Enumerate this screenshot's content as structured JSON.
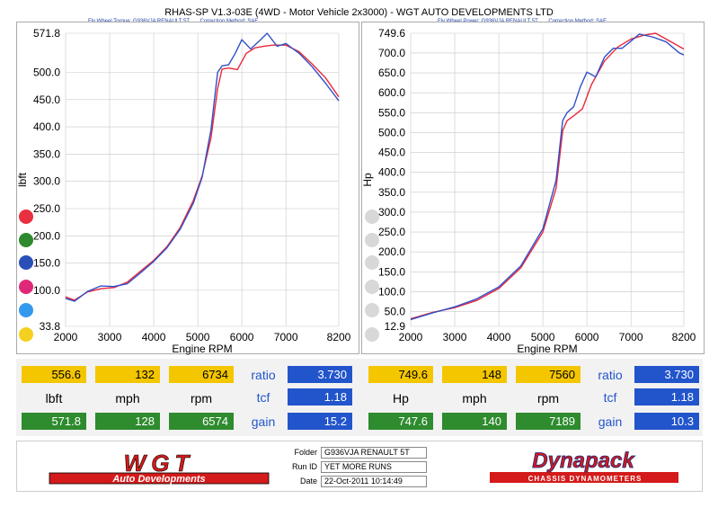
{
  "title": "RHAS-SP V1.3-03E  (4WD - Motor Vehicle 2x3000) - WGT AUTO DEVELOPMENTS LTD",
  "left_header": {
    "label": "Fly Wheel Torque: G936VJA RENAULT 5T",
    "correction": "Correction Method: SAE"
  },
  "right_header": {
    "label": "Fly Wheel Power: G936VJA RENAULT 5T",
    "correction": "Correction Method: SAE"
  },
  "colors": {
    "red_run": "#e8283c",
    "blue_run": "#3050c8",
    "grid": "#c8c8c8"
  },
  "dots": {
    "left": [
      "#e83040",
      "#2e8a2e",
      "#2850b8",
      "#e02878",
      "#3399ee",
      "#f4d020"
    ],
    "right": [
      "#d8d8d8",
      "#d8d8d8",
      "#d8d8d8",
      "#d8d8d8",
      "#d8d8d8",
      "#d8d8d8"
    ]
  },
  "chart_data": [
    {
      "type": "line",
      "xlabel": "Engine RPM",
      "ylabel": "lbft",
      "x_ticks": [
        "2000",
        "3000",
        "4000",
        "5000",
        "6000",
        "7000",
        "8200"
      ],
      "y_ticks": [
        "571.8",
        "500.0",
        "450.0",
        "400.0",
        "350.0",
        "300.0",
        "250.0",
        "200.0",
        "150.0",
        "100.0",
        "33.8"
      ],
      "xlim": [
        2000,
        8200
      ],
      "ylim": [
        33.8,
        571.8
      ],
      "grid": true,
      "series": [
        {
          "color": "red",
          "x": [
            2000,
            2200,
            2500,
            2800,
            3100,
            3400,
            3700,
            4000,
            4300,
            4600,
            4900,
            5100,
            5300,
            5450,
            5550,
            5700,
            5900,
            6100,
            6300,
            6500,
            6700,
            7000,
            7300,
            7600,
            7900,
            8200
          ],
          "y": [
            88,
            82,
            97,
            103,
            105,
            115,
            135,
            155,
            180,
            215,
            265,
            310,
            380,
            470,
            506,
            508,
            505,
            535,
            545,
            548,
            550,
            550,
            538,
            515,
            490,
            455
          ]
        },
        {
          "color": "blue",
          "x": [
            2000,
            2200,
            2500,
            2800,
            3100,
            3400,
            3700,
            4000,
            4300,
            4600,
            4900,
            5100,
            5300,
            5450,
            5550,
            5700,
            5850,
            6000,
            6200,
            6400,
            6574,
            6800,
            7000,
            7300,
            7600,
            7900,
            8200
          ],
          "y": [
            85,
            80,
            98,
            108,
            107,
            112,
            132,
            153,
            178,
            212,
            260,
            308,
            395,
            500,
            512,
            514,
            535,
            560,
            543,
            558,
            571.8,
            548,
            553,
            535,
            510,
            480,
            448
          ]
        }
      ]
    },
    {
      "type": "line",
      "xlabel": "Engine RPM",
      "ylabel": "Hp",
      "x_ticks": [
        "2000",
        "3000",
        "4000",
        "5000",
        "6000",
        "7000",
        "8200"
      ],
      "y_ticks": [
        "749.6",
        "700.0",
        "650.0",
        "600.0",
        "550.0",
        "500.0",
        "450.0",
        "400.0",
        "350.0",
        "300.0",
        "250.0",
        "200.0",
        "150.0",
        "100.0",
        "50.0",
        "12.9"
      ],
      "xlim": [
        2000,
        8200
      ],
      "ylim": [
        12.9,
        749.6
      ],
      "grid": true,
      "series": [
        {
          "color": "red",
          "x": [
            2000,
            2500,
            3000,
            3500,
            4000,
            4500,
            5000,
            5300,
            5450,
            5550,
            5700,
            5900,
            6100,
            6400,
            6700,
            7000,
            7300,
            7560,
            7800,
            8200
          ],
          "y": [
            32,
            48,
            60,
            78,
            108,
            160,
            250,
            360,
            505,
            530,
            542,
            560,
            620,
            680,
            715,
            735,
            745,
            749.6,
            735,
            710
          ]
        },
        {
          "color": "blue",
          "x": [
            2000,
            2500,
            3000,
            3500,
            4000,
            4500,
            5000,
            5300,
            5450,
            5550,
            5700,
            5850,
            6000,
            6200,
            6400,
            6600,
            6800,
            7000,
            7189,
            7500,
            7800,
            8100,
            8200
          ],
          "y": [
            30,
            47,
            62,
            82,
            112,
            165,
            258,
            380,
            530,
            550,
            565,
            615,
            652,
            640,
            690,
            712,
            712,
            730,
            747.6,
            740,
            728,
            700,
            695
          ]
        }
      ]
    }
  ],
  "stats": {
    "left": {
      "row1": [
        "556.6",
        "132",
        "6734"
      ],
      "labels": [
        "lbft",
        "mph",
        "rpm"
      ],
      "row3": [
        "571.8",
        "128",
        "6574"
      ],
      "side_labels": [
        "ratio",
        "tcf",
        "gain"
      ],
      "side_values": [
        "3.730",
        "1.18",
        "15.2"
      ]
    },
    "right": {
      "row1": [
        "749.6",
        "148",
        "7560"
      ],
      "labels": [
        "Hp",
        "mph",
        "rpm"
      ],
      "row3": [
        "747.6",
        "140",
        "7189"
      ],
      "side_labels": [
        "ratio",
        "tcf",
        "gain"
      ],
      "side_values": [
        "3.730",
        "1.18",
        "10.3"
      ]
    }
  },
  "footer": {
    "logo_main": "WGT",
    "logo_sub": "Auto Developments",
    "folder_label": "Folder",
    "folder_value": "G936VJA RENAULT 5T",
    "run_label": "Run ID",
    "run_value": "YET MORE RUNS",
    "date_label": "Date",
    "date_value": "22-Oct-2011   10:14:49",
    "dyna_main": "Dynapack",
    "dyna_sub": "CHASSIS DYNAMOMETERS"
  }
}
